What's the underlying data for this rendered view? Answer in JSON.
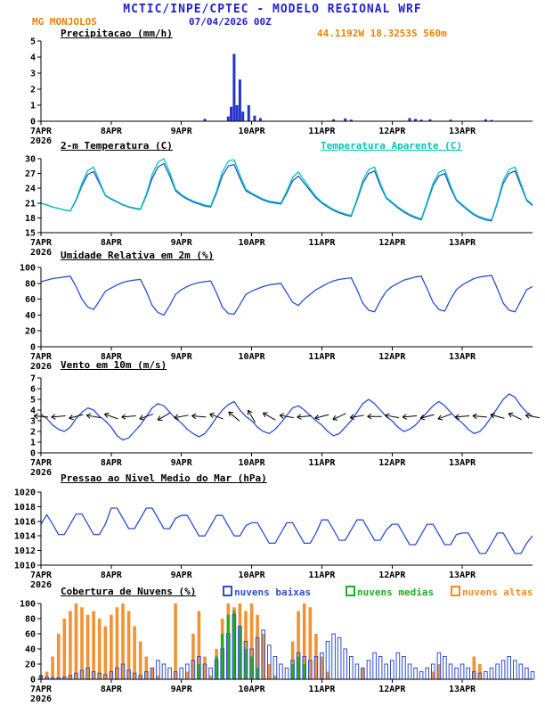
{
  "header": {
    "title": "MCTIC/INPE/CPTEC - MODELO REGIONAL WRF",
    "station": "MG MONJOLOS",
    "run": "07/04/2026 00Z",
    "coords": "44.1192W 18.3253S 560m",
    "title_color": "#2222cc",
    "station_color": "#f08000",
    "run_color": "#2222cc",
    "coords_color": "#f08000"
  },
  "x_axis": {
    "tick_labels": [
      "7APR",
      "8APR",
      "9APR",
      "10APR",
      "11APR",
      "12APR",
      "13APR"
    ],
    "year_label": "2026",
    "span_days": 7
  },
  "chart_data": [
    {
      "title": "Precipitacao (mm/h)",
      "type": "bar",
      "ylim": [
        0,
        5
      ],
      "yticks": [
        0,
        1,
        2,
        3,
        4,
        5
      ],
      "bar_color": "#2233cc",
      "bars": [
        [
          56,
          0.15
        ],
        [
          64,
          0.3
        ],
        [
          65,
          0.9
        ],
        [
          66,
          4.2
        ],
        [
          67,
          1.0
        ],
        [
          68,
          2.6
        ],
        [
          69,
          0.6
        ],
        [
          71,
          1.0
        ],
        [
          73,
          0.35
        ],
        [
          75,
          0.2
        ],
        [
          100,
          0.12
        ],
        [
          104,
          0.18
        ],
        [
          106,
          0.1
        ],
        [
          126,
          0.2
        ],
        [
          128,
          0.15
        ],
        [
          130,
          0.1
        ],
        [
          133,
          0.12
        ],
        [
          140,
          0.1
        ],
        [
          152,
          0.12
        ],
        [
          154,
          0.08
        ]
      ]
    },
    {
      "title": "2-m Temperatura (C)",
      "type": "line",
      "ylim": [
        15,
        30
      ],
      "yticks": [
        15,
        18,
        21,
        24,
        27,
        30
      ],
      "x_step_hours": 2,
      "series": [
        {
          "name": "2-m Temperatura (C)",
          "color": "#2850d8",
          "values": [
            21.0,
            20.6,
            20.2,
            19.9,
            19.6,
            19.4,
            21.5,
            24.5,
            26.8,
            27.4,
            25.0,
            22.5,
            21.8,
            21.2,
            20.6,
            20.2,
            19.9,
            19.7,
            22.5,
            26.0,
            28.3,
            29.0,
            26.5,
            23.5,
            22.5,
            21.8,
            21.2,
            20.8,
            20.4,
            20.2,
            23.0,
            26.5,
            28.5,
            28.8,
            26.0,
            23.5,
            22.8,
            22.2,
            21.6,
            21.2,
            21.0,
            20.8,
            23.0,
            25.5,
            26.5,
            25.0,
            23.5,
            22.0,
            21.0,
            20.2,
            19.5,
            19.0,
            18.6,
            18.3,
            21.5,
            25.0,
            27.0,
            27.5,
            24.5,
            22.0,
            21.0,
            20.0,
            19.2,
            18.5,
            18.0,
            17.6,
            21.0,
            24.5,
            26.5,
            27.0,
            24.0,
            21.5,
            20.5,
            19.5,
            18.6,
            18.0,
            17.6,
            17.4,
            21.0,
            25.0,
            27.0,
            27.5,
            24.5,
            21.5,
            20.5
          ]
        },
        {
          "name": "Temperatura Aparente (C)",
          "color": "#00c8b4",
          "values": [
            21.0,
            20.6,
            20.2,
            19.9,
            19.6,
            19.4,
            21.7,
            25.0,
            27.6,
            28.3,
            25.4,
            22.6,
            21.9,
            21.3,
            20.7,
            20.3,
            20.0,
            19.8,
            22.8,
            26.8,
            29.3,
            30.0,
            27.2,
            23.8,
            22.7,
            22.0,
            21.4,
            21.0,
            20.6,
            20.4,
            23.4,
            27.3,
            29.5,
            29.8,
            26.7,
            23.8,
            23.0,
            22.4,
            21.8,
            21.4,
            21.2,
            21.0,
            23.4,
            26.2,
            27.3,
            25.6,
            23.9,
            22.3,
            21.2,
            20.4,
            19.7,
            19.2,
            18.8,
            18.5,
            21.8,
            25.6,
            27.8,
            28.3,
            25.0,
            22.2,
            21.2,
            20.2,
            19.4,
            18.7,
            18.2,
            17.8,
            21.3,
            25.0,
            27.2,
            27.8,
            24.5,
            21.7,
            20.7,
            19.7,
            18.8,
            18.2,
            17.8,
            17.6,
            21.3,
            25.6,
            27.8,
            28.3,
            25.0,
            21.7,
            20.7
          ]
        }
      ]
    },
    {
      "title": "Umidade Relativa em 2m (%)",
      "type": "line",
      "ylim": [
        0,
        100
      ],
      "yticks": [
        0,
        20,
        40,
        60,
        80,
        100
      ],
      "x_step_hours": 2,
      "series": [
        {
          "name": "Umidade Relativa em 2m (%)",
          "color": "#2850d8",
          "values": [
            82,
            84,
            86,
            87,
            88,
            89,
            76,
            60,
            50,
            47,
            58,
            70,
            74,
            78,
            81,
            83,
            84,
            85,
            70,
            52,
            43,
            40,
            52,
            66,
            72,
            76,
            79,
            81,
            82,
            83,
            68,
            50,
            42,
            41,
            53,
            66,
            70,
            73,
            76,
            78,
            79,
            80,
            68,
            56,
            52,
            60,
            66,
            72,
            76,
            80,
            83,
            85,
            86,
            87,
            72,
            55,
            46,
            44,
            58,
            70,
            76,
            80,
            84,
            86,
            88,
            89,
            73,
            56,
            47,
            45,
            60,
            72,
            78,
            82,
            86,
            88,
            89,
            90,
            73,
            55,
            46,
            44,
            58,
            72,
            76
          ]
        }
      ]
    },
    {
      "title": "Vento em 10m (m/s)",
      "type": "wind",
      "ylim": [
        0,
        7
      ],
      "yticks": [
        0,
        1,
        2,
        3,
        4,
        5,
        6,
        7
      ],
      "x_step_hours": 2,
      "barb_level": 3.4,
      "barb_color": "#000000",
      "series": [
        {
          "name": "Vento em 10m (m/s)",
          "color": "#2850d8",
          "values": [
            3.6,
            3.2,
            2.6,
            2.2,
            2.0,
            2.4,
            3.2,
            3.8,
            4.2,
            4.0,
            3.4,
            3.0,
            2.4,
            1.6,
            1.2,
            1.4,
            2.0,
            2.6,
            3.4,
            4.2,
            4.6,
            4.4,
            3.8,
            3.2,
            2.8,
            2.2,
            1.8,
            1.5,
            1.8,
            2.5,
            3.3,
            4.0,
            4.5,
            4.8,
            4.0,
            3.4,
            3.0,
            2.4,
            2.0,
            1.8,
            2.2,
            2.8,
            3.5,
            4.2,
            4.4,
            4.0,
            3.5,
            3.0,
            2.6,
            2.0,
            1.6,
            1.8,
            2.4,
            3.0,
            3.8,
            4.6,
            5.0,
            4.6,
            4.0,
            3.4,
            3.0,
            2.4,
            2.0,
            2.2,
            2.6,
            3.2,
            3.8,
            4.4,
            4.8,
            4.4,
            3.8,
            3.2,
            2.8,
            2.2,
            1.8,
            2.0,
            2.6,
            3.4,
            4.2,
            5.0,
            5.5,
            5.2,
            4.4,
            3.8,
            3.4
          ]
        }
      ],
      "barbs": [
        [
          0,
          175
        ],
        [
          6,
          185
        ],
        [
          12,
          195
        ],
        [
          18,
          170
        ],
        [
          24,
          160
        ],
        [
          30,
          185
        ],
        [
          36,
          200
        ],
        [
          42,
          210
        ],
        [
          48,
          190
        ],
        [
          54,
          175
        ],
        [
          60,
          160
        ],
        [
          66,
          140
        ],
        [
          72,
          120
        ],
        [
          78,
          150
        ],
        [
          84,
          170
        ],
        [
          90,
          185
        ],
        [
          96,
          195
        ],
        [
          102,
          205
        ],
        [
          108,
          190
        ],
        [
          114,
          180
        ],
        [
          120,
          170
        ],
        [
          126,
          185
        ],
        [
          132,
          195
        ],
        [
          138,
          200
        ],
        [
          144,
          185
        ],
        [
          150,
          175
        ],
        [
          156,
          165
        ],
        [
          162,
          155
        ],
        [
          168,
          170
        ]
      ]
    },
    {
      "title": "Pressao ao Nivel Medio do Mar (hPa)",
      "type": "line",
      "ylim": [
        1010,
        1020
      ],
      "yticks": [
        1010,
        1012,
        1014,
        1016,
        1018,
        1020
      ],
      "x_step_hours": 2,
      "series": [
        {
          "name": "Pressao ao Nivel Medio do Mar (hPa)",
          "color": "#2850d8",
          "values": [
            1015.6,
            1016.9,
            1015.6,
            1014.2,
            1014.2,
            1015.6,
            1017.0,
            1017.0,
            1015.6,
            1014.2,
            1014.2,
            1015.6,
            1017.8,
            1017.8,
            1016.4,
            1015.0,
            1015.0,
            1016.4,
            1017.8,
            1017.8,
            1016.4,
            1015.0,
            1015.0,
            1016.4,
            1016.8,
            1016.8,
            1015.4,
            1014.0,
            1014.0,
            1015.4,
            1016.8,
            1016.8,
            1015.4,
            1014.0,
            1014.0,
            1015.4,
            1015.8,
            1015.8,
            1014.4,
            1013.0,
            1013.0,
            1014.4,
            1015.8,
            1015.8,
            1014.4,
            1013.0,
            1013.0,
            1014.4,
            1016.2,
            1016.2,
            1014.8,
            1013.4,
            1013.4,
            1014.8,
            1016.2,
            1016.2,
            1014.8,
            1013.4,
            1013.4,
            1014.8,
            1015.6,
            1015.6,
            1014.2,
            1012.8,
            1012.8,
            1014.2,
            1015.6,
            1015.6,
            1014.2,
            1012.8,
            1012.8,
            1014.2,
            1014.4,
            1014.4,
            1013.0,
            1011.6,
            1011.6,
            1013.0,
            1014.4,
            1014.4,
            1013.0,
            1011.6,
            1011.6,
            1013.0,
            1014.0
          ]
        }
      ]
    },
    {
      "title": "Cobertura de Nuvens (%)",
      "type": "multibar",
      "ylim": [
        0,
        100
      ],
      "yticks": [
        0,
        20,
        40,
        60,
        80,
        100
      ],
      "x_step_hours": 2,
      "bar_series": [
        {
          "name": "nuvens baixas",
          "color": "#2f4fd0",
          "style": "outline",
          "values": [
            5,
            3,
            2,
            2,
            3,
            5,
            8,
            12,
            15,
            10,
            8,
            6,
            10,
            15,
            20,
            12,
            8,
            5,
            10,
            15,
            25,
            20,
            15,
            10,
            15,
            20,
            25,
            30,
            20,
            15,
            25,
            40,
            60,
            85,
            70,
            50,
            40,
            55,
            65,
            45,
            30,
            20,
            15,
            25,
            35,
            30,
            25,
            30,
            35,
            50,
            60,
            55,
            40,
            30,
            20,
            15,
            25,
            35,
            30,
            20,
            25,
            35,
            30,
            20,
            15,
            10,
            15,
            20,
            35,
            30,
            20,
            15,
            20,
            15,
            10,
            8,
            10,
            15,
            20,
            25,
            30,
            25,
            20,
            15,
            10
          ]
        },
        {
          "name": "nuvens medias",
          "color": "#1fae1f",
          "style": "fill",
          "values": [
            0,
            0,
            0,
            0,
            0,
            0,
            0,
            0,
            0,
            0,
            0,
            0,
            0,
            0,
            0,
            0,
            0,
            0,
            0,
            0,
            0,
            0,
            0,
            0,
            0,
            0,
            0,
            20,
            0,
            0,
            30,
            60,
            85,
            90,
            70,
            40,
            30,
            15,
            0,
            0,
            0,
            0,
            0,
            20,
            30,
            20,
            0,
            0,
            0,
            0,
            0,
            0,
            0,
            0,
            0,
            0,
            0,
            0,
            0,
            0,
            0,
            0,
            0,
            0,
            0,
            0,
            0,
            0,
            0,
            0,
            0,
            0,
            0,
            0,
            0,
            0,
            0,
            0,
            0,
            0,
            0,
            0,
            0,
            0,
            0
          ]
        },
        {
          "name": "nuvens altas",
          "color": "#f28c28",
          "style": "fill",
          "values": [
            5,
            10,
            30,
            60,
            80,
            90,
            100,
            95,
            85,
            90,
            80,
            70,
            85,
            95,
            100,
            90,
            70,
            50,
            30,
            15,
            5,
            0,
            0,
            100,
            0,
            10,
            60,
            90,
            30,
            5,
            40,
            80,
            100,
            95,
            100,
            90,
            100,
            85,
            60,
            20,
            5,
            0,
            0,
            50,
            90,
            100,
            95,
            60,
            30,
            10,
            0,
            0,
            0,
            0,
            0,
            15,
            0,
            0,
            0,
            0,
            0,
            0,
            0,
            0,
            0,
            0,
            0,
            10,
            20,
            0,
            0,
            0,
            0,
            0,
            30,
            20,
            0,
            0,
            0,
            0,
            0,
            0,
            0,
            0,
            0
          ]
        }
      ]
    }
  ]
}
